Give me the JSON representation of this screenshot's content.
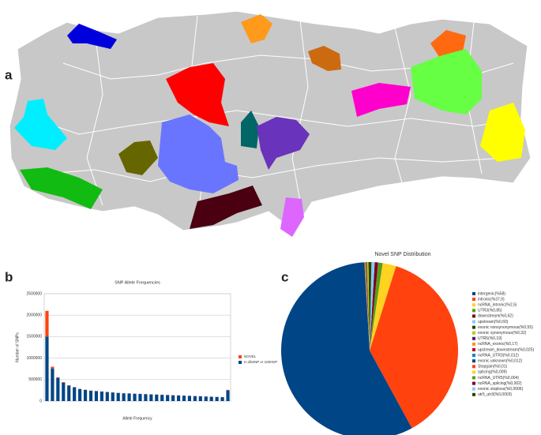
{
  "panel_labels": [
    "a",
    "b",
    "c"
  ],
  "chart_data": [
    {
      "type": "bar",
      "stacked": true,
      "title": "SNP Allele Frequencies",
      "x_label": "Allele Frequency",
      "y_label": "Number of SNPs",
      "categories": [
        null,
        null,
        null,
        null,
        null,
        null,
        null,
        null,
        null,
        null,
        null,
        null,
        null,
        null,
        null,
        null,
        null,
        null,
        null,
        null,
        null,
        null,
        null,
        null,
        null,
        null,
        null,
        null,
        null,
        null,
        null,
        null,
        null,
        null
      ],
      "series": [
        {
          "name": "In dbSNP or 1000GP",
          "color": "#004586",
          "values": [
            1500000,
            760000,
            540000,
            430000,
            360000,
            320000,
            280000,
            260000,
            240000,
            230000,
            220000,
            210000,
            200000,
            190000,
            180000,
            175000,
            170000,
            165000,
            160000,
            155000,
            150000,
            145000,
            140000,
            135000,
            130000,
            125000,
            120000,
            115000,
            110000,
            105000,
            100000,
            95000,
            90000,
            250000
          ]
        },
        {
          "name": "NOVEL",
          "color": "#ff420e",
          "values": [
            600000,
            40000,
            15000,
            10000,
            8000,
            6000,
            5000,
            5000,
            4000,
            4000,
            4000,
            3000,
            3000,
            3000,
            3000,
            3000,
            3000,
            3000,
            3000,
            3000,
            3000,
            3000,
            3000,
            3000,
            3000,
            3000,
            3000,
            3000,
            3000,
            3000,
            3000,
            3000,
            3000,
            10000
          ]
        }
      ],
      "ylim": [
        0,
        2500000
      ],
      "yticks": [
        0,
        500000,
        1000000,
        1500000,
        2000000,
        2500000
      ],
      "grid": true,
      "legend": "right"
    },
    {
      "type": "pie",
      "title": "Novel SNP Distribution",
      "legend": "right",
      "categories": [
        "intergenic(%58)",
        "intronic(%37,9)",
        "ncRNA_intronic(%2,5)",
        "UTR3(%0,85)",
        "downstream(%0,62)",
        "upstream(%0,60)",
        "exonic nonsynonymous(%0,55)",
        "exonic synonymous(%0,32)",
        "UTR5(%0,19)",
        "ncRNA_exonic(%0,17)",
        "upstream_downstream(%0,025)",
        "ncRNA_UTR3(%0,012)",
        "exonic unknown(%0,012)",
        "Stopgain(%0,01)",
        "splicing(%0,009)",
        "ncRNA_UTR5(%0,004)",
        "ncRNA_splicing(%0,002)",
        "exonic stoploss(%0,0006)",
        "utr5_utr3(%0,0003)"
      ],
      "values": [
        58,
        37.9,
        2.5,
        0.85,
        0.62,
        0.6,
        0.55,
        0.32,
        0.19,
        0.17,
        0.025,
        0.012,
        0.012,
        0.01,
        0.009,
        0.004,
        0.002,
        0.0006,
        0.0003
      ],
      "colors": [
        "#004586",
        "#ff420e",
        "#ffd320",
        "#579d1c",
        "#7e0021",
        "#83caff",
        "#314004",
        "#aecf00",
        "#4b1f6f",
        "#ff950e",
        "#c5000b",
        "#0084d1",
        "#004586",
        "#ff420e",
        "#ffd320",
        "#579d1c",
        "#7e0021",
        "#83caff",
        "#314004"
      ]
    }
  ]
}
